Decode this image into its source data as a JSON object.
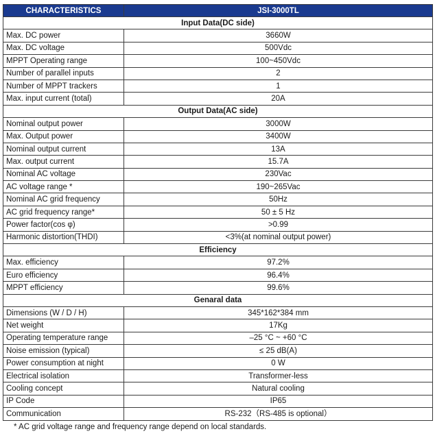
{
  "header": {
    "col1": "CHARACTERISTICS",
    "col2": "JSI-3000TL"
  },
  "sections": [
    {
      "title": "Input Data(DC side)",
      "rows": [
        {
          "label": "Max. DC power",
          "value": "3660W"
        },
        {
          "label": "Max. DC voltage",
          "value": "500Vdc"
        },
        {
          "label": "MPPT Operating range",
          "value": "100~450Vdc"
        },
        {
          "label": "Number of parallel inputs",
          "value": "2"
        },
        {
          "label": "Number of MPPT trackers",
          "value": "1"
        },
        {
          "label": "Max. input current (total)",
          "value": "20A"
        }
      ]
    },
    {
      "title": "Output Data(AC side)",
      "rows": [
        {
          "label": "Nominal output power",
          "value": "3000W"
        },
        {
          "label": "Max. Output power",
          "value": "3400W"
        },
        {
          "label": "Nominal output current",
          "value": "13A"
        },
        {
          "label": "Max. output current",
          "value": "15.7A"
        },
        {
          "label": "Nominal AC voltage",
          "value": "230Vac"
        },
        {
          "label": "AC voltage range *",
          "value": "190~265Vac"
        },
        {
          "label": "Nominal AC grid frequency",
          "value": "50Hz"
        },
        {
          "label": "AC grid frequency range*",
          "value": "50 ± 5 Hz"
        },
        {
          "label": "Power factor(cos φ)",
          "value": ">0.99"
        },
        {
          "label": "Harmonic distortion(THDI)",
          "value": "<3%(at nominal output power)"
        }
      ]
    },
    {
      "title": "Efficiency",
      "rows": [
        {
          "label": "Max. efficiency",
          "value": "97.2%"
        },
        {
          "label": "Euro efficiency",
          "value": "96.4%"
        },
        {
          "label": "MPPT efficiency",
          "value": "99.6%"
        }
      ]
    },
    {
      "title": "Genaral data",
      "rows": [
        {
          "label": "Dimensions (W / D / H)",
          "value": "345*162*384 mm"
        },
        {
          "label": "Net weight",
          "value": "17Kg"
        },
        {
          "label": "Operating temperature range",
          "value": "–25 °C ~ +60 °C"
        },
        {
          "label": "Noise emission (typical)",
          "value": "≤ 25 dB(A)"
        },
        {
          "label": "Power consumption at night",
          "value": "0 W"
        },
        {
          "label": "Electrical isolation",
          "value": "Transformer-less"
        },
        {
          "label": "Cooling concept",
          "value": "Natural cooling"
        },
        {
          "label": "IP Code",
          "value": "IP65"
        },
        {
          "label": "Communication",
          "value": "RS-232（RS-485 is optional）"
        }
      ]
    }
  ],
  "footnote": "* AC grid voltage range and frequency range depend on local standards.",
  "colors": {
    "header_bg": "#1a3a8f",
    "header_text": "#ffffff",
    "border": "#3a3a3a"
  }
}
